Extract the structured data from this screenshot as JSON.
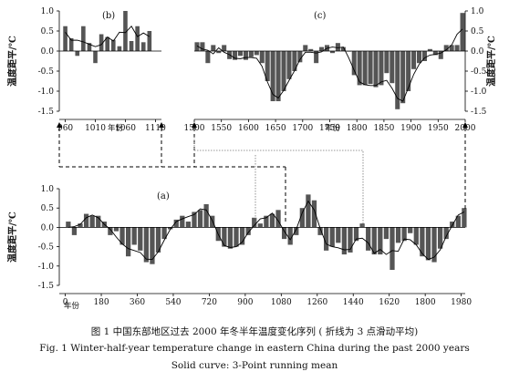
{
  "colors": {
    "bar": "#555555",
    "line": "#000000",
    "axis": "#000000",
    "guide": "#777777"
  },
  "chart_data": [
    {
      "id": "b",
      "type": "bar",
      "panel_label": "(b)",
      "ylabel": "温度距平/℃",
      "xlabel": "年份",
      "xlim": [
        950,
        1120
      ],
      "ylim": [
        -1.5,
        1.0
      ],
      "xticks": [
        960,
        1010,
        1060,
        1110
      ],
      "yticks": [
        1.0,
        0.5,
        0.0,
        -0.5,
        -1.0,
        -1.5
      ],
      "ytick_labels": [
        "1.0",
        "0.5",
        "0.0",
        "-0.5",
        "-1.0",
        "-1.5"
      ],
      "x": [
        960,
        970,
        980,
        990,
        1000,
        1010,
        1020,
        1030,
        1040,
        1050,
        1060,
        1070,
        1080,
        1090,
        1100
      ],
      "values": [
        0.62,
        0.32,
        -0.12,
        0.62,
        0.2,
        -0.3,
        0.42,
        0.35,
        0.28,
        0.12,
        1.0,
        0.25,
        0.62,
        0.22,
        0.5
      ],
      "running_mean": [
        0.47,
        0.27,
        0.27,
        0.23,
        0.17,
        0.11,
        0.16,
        0.35,
        0.25,
        0.47,
        0.46,
        0.62,
        0.36,
        0.45,
        0.36
      ]
    },
    {
      "id": "c",
      "type": "bar",
      "panel_label": "(c)",
      "ylabel": "温度距平/℃",
      "xlabel": "年份",
      "xlim": [
        1500,
        2000
      ],
      "ylim": [
        -1.5,
        1.0
      ],
      "xticks": [
        1500,
        1550,
        1600,
        1650,
        1700,
        1750,
        1800,
        1850,
        1900,
        1950,
        2000
      ],
      "yticks": [
        1.0,
        0.5,
        0.0,
        -0.5,
        -1.0,
        -1.5
      ],
      "ytick_labels": [
        "1.0",
        "0.5",
        "0.0",
        "-0.5",
        "-1.0",
        "-1.5"
      ],
      "x": [
        1505,
        1515,
        1525,
        1535,
        1545,
        1555,
        1565,
        1575,
        1585,
        1595,
        1605,
        1615,
        1625,
        1635,
        1645,
        1655,
        1665,
        1675,
        1685,
        1695,
        1705,
        1715,
        1725,
        1735,
        1745,
        1755,
        1765,
        1775,
        1785,
        1795,
        1805,
        1815,
        1825,
        1835,
        1845,
        1855,
        1865,
        1875,
        1885,
        1895,
        1905,
        1915,
        1925,
        1935,
        1945,
        1955,
        1965,
        1975,
        1985,
        1995
      ],
      "values": [
        0.22,
        0.22,
        -0.3,
        0.15,
        -0.05,
        0.15,
        -0.2,
        -0.22,
        -0.12,
        -0.22,
        -0.15,
        -0.1,
        -0.3,
        -0.75,
        -1.25,
        -1.25,
        -1.0,
        -0.7,
        -0.5,
        -0.28,
        0.15,
        0.05,
        -0.3,
        0.1,
        0.15,
        -0.05,
        0.2,
        0.1,
        0.0,
        -0.6,
        -0.85,
        -0.85,
        -0.82,
        -0.9,
        -0.85,
        -0.55,
        -0.8,
        -1.45,
        -1.3,
        -1.0,
        -0.45,
        -0.3,
        -0.25,
        0.05,
        -0.1,
        -0.2,
        0.15,
        0.15,
        0.15,
        0.95
      ],
      "running_mean": [
        0.13,
        0.05,
        0.02,
        -0.07,
        0.08,
        -0.03,
        -0.09,
        -0.18,
        -0.19,
        -0.16,
        -0.16,
        -0.18,
        -0.38,
        -0.77,
        -1.08,
        -1.17,
        -0.98,
        -0.73,
        -0.49,
        -0.21,
        -0.03,
        -0.03,
        -0.05,
        -0.02,
        0.07,
        0.1,
        0.08,
        0.1,
        -0.17,
        -0.48,
        -0.77,
        -0.84,
        -0.86,
        -0.86,
        -0.77,
        -0.73,
        -0.93,
        -1.18,
        -1.25,
        -0.92,
        -0.58,
        -0.33,
        -0.17,
        -0.1,
        -0.08,
        -0.05,
        0.03,
        0.15,
        0.42,
        0.55
      ]
    },
    {
      "id": "a",
      "type": "bar",
      "panel_label": "(a)",
      "ylabel": "温度距平/℃",
      "xlabel": "年份",
      "xlim": [
        -30,
        2000
      ],
      "ylim": [
        -1.5,
        1.0
      ],
      "xticks": [
        0,
        180,
        360,
        540,
        720,
        900,
        1080,
        1260,
        1440,
        1620,
        1800,
        1980
      ],
      "yticks": [
        1.0,
        0.5,
        0.0,
        -0.5,
        -1.0,
        -1.5
      ],
      "ytick_labels": [
        "1.0",
        "0.5",
        "0.0",
        "-0.5",
        "-1.0",
        "-1.5"
      ],
      "x": [
        15,
        45,
        75,
        105,
        135,
        165,
        195,
        225,
        255,
        285,
        315,
        345,
        375,
        405,
        435,
        465,
        495,
        525,
        555,
        585,
        615,
        645,
        675,
        705,
        735,
        765,
        795,
        825,
        855,
        885,
        915,
        945,
        975,
        1005,
        1035,
        1065,
        1095,
        1125,
        1155,
        1185,
        1215,
        1245,
        1275,
        1305,
        1335,
        1365,
        1395,
        1425,
        1455,
        1485,
        1515,
        1545,
        1575,
        1605,
        1635,
        1665,
        1695,
        1725,
        1755,
        1785,
        1815,
        1845,
        1875,
        1905,
        1935,
        1965,
        1995
      ],
      "values": [
        0.15,
        -0.2,
        0.1,
        0.35,
        0.3,
        0.3,
        0.15,
        -0.2,
        -0.1,
        -0.45,
        -0.75,
        -0.45,
        -0.6,
        -0.9,
        -0.95,
        -0.65,
        -0.3,
        -0.05,
        0.2,
        0.3,
        0.15,
        0.4,
        0.45,
        0.6,
        0.3,
        -0.35,
        -0.5,
        -0.55,
        -0.5,
        -0.45,
        -0.2,
        0.25,
        0.1,
        0.3,
        0.35,
        0.45,
        -0.3,
        -0.45,
        -0.2,
        0.5,
        0.85,
        0.7,
        -0.2,
        -0.6,
        -0.5,
        -0.4,
        -0.7,
        -0.65,
        -0.35,
        0.1,
        -0.6,
        -0.7,
        -0.7,
        -0.3,
        -1.1,
        -0.4,
        -0.35,
        -0.15,
        -0.45,
        -0.75,
        -0.85,
        -0.9,
        -0.55,
        -0.3,
        0.15,
        0.3,
        0.5
      ],
      "running_mean": [
        0.0,
        0.02,
        0.08,
        0.25,
        0.32,
        0.25,
        0.08,
        -0.05,
        -0.25,
        -0.43,
        -0.55,
        -0.6,
        -0.65,
        -0.82,
        -0.83,
        -0.63,
        -0.33,
        -0.05,
        0.15,
        0.22,
        0.28,
        0.33,
        0.48,
        0.45,
        0.18,
        -0.18,
        -0.47,
        -0.52,
        -0.5,
        -0.38,
        -0.13,
        0.05,
        0.22,
        0.25,
        0.37,
        0.17,
        -0.1,
        -0.32,
        -0.05,
        0.38,
        0.68,
        0.45,
        -0.03,
        -0.43,
        -0.5,
        -0.53,
        -0.58,
        -0.57,
        -0.3,
        -0.28,
        -0.4,
        -0.67,
        -0.57,
        -0.7,
        -0.6,
        -0.62,
        -0.3,
        -0.32,
        -0.45,
        -0.68,
        -0.83,
        -0.77,
        -0.58,
        -0.23,
        0.05,
        0.32,
        0.4
      ]
    }
  ],
  "caption": {
    "line1": "图 1   中国东部地区过去 2000 年冬半年温度变化序列 ( 折线为 3 点滑动平均)",
    "line2": "Fig. 1    Winter-half-year temperature change in eastern China during the past 2000 years",
    "line3": "Solid curve:  3-Point running mean"
  }
}
